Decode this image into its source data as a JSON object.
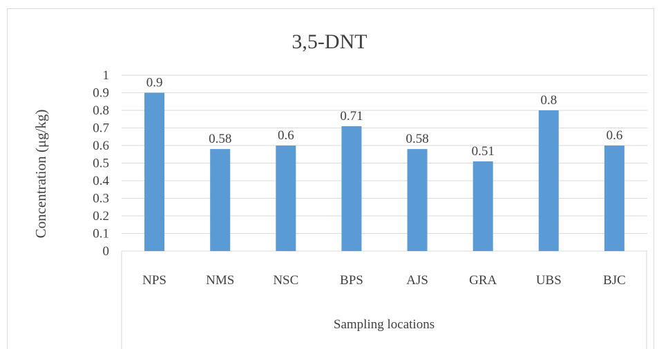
{
  "chart_data": {
    "type": "bar",
    "title": "3,5-DNT",
    "xlabel": "Sampling locations",
    "ylabel": "Concentration (μg/kg)",
    "categories": [
      "NPS",
      "NMS",
      "NSC",
      "BPS",
      "AJS",
      "GRA",
      "UBS",
      "BJC"
    ],
    "values": [
      0.9,
      0.58,
      0.6,
      0.71,
      0.58,
      0.51,
      0.8,
      0.6
    ],
    "data_labels": [
      "0.9",
      "0.58",
      "0.6",
      "0.71",
      "0.58",
      "0.51",
      "0.8",
      "0.6"
    ],
    "yticks": [
      "0",
      "0.1",
      "0.2",
      "0.3",
      "0.4",
      "0.5",
      "0.6",
      "0.7",
      "0.8",
      "0.9",
      "1"
    ],
    "ylim": [
      0,
      1
    ],
    "grid": true,
    "legend": "none",
    "colors": {
      "bar": "#5b9bd5",
      "grid": "#d9d9d9",
      "text": "#404040"
    }
  }
}
